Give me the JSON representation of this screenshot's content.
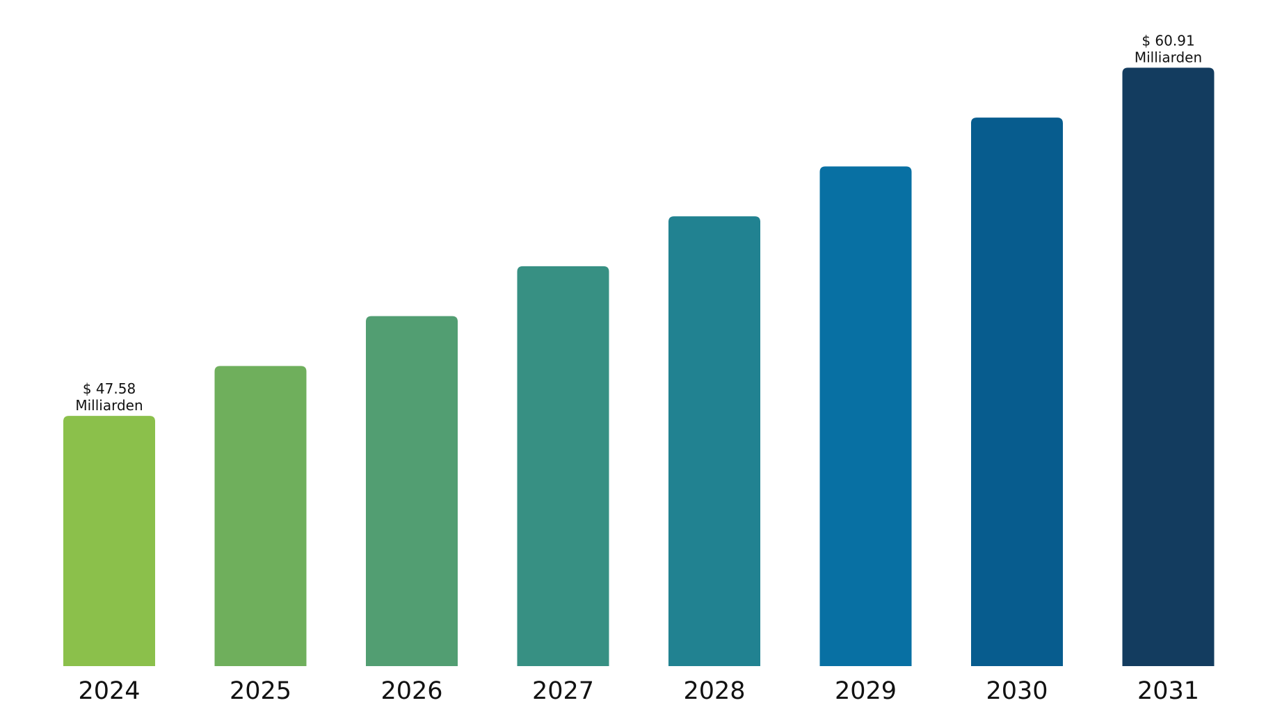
{
  "chart_data": {
    "type": "bar",
    "title": "",
    "xlabel": "",
    "ylabel": "",
    "categories": [
      "2024",
      "2025",
      "2026",
      "2027",
      "2028",
      "2029",
      "2030",
      "2031"
    ],
    "values": [
      47.58,
      49.49,
      51.4,
      53.31,
      55.22,
      57.13,
      59.0,
      60.91
    ],
    "value_unit": "Milliarden",
    "ylim": [
      38.0,
      61.0
    ],
    "grid": false,
    "legend": "none",
    "colors": [
      "#8bc04b",
      "#6faf5c",
      "#529e72",
      "#379083",
      "#218291",
      "#0870a3",
      "#075c8e",
      "#133c5f"
    ],
    "data_labels": [
      {
        "index": 0,
        "line1": "$ 47.58",
        "line2": "Milliarden"
      },
      {
        "index": 7,
        "line1": "$ 60.91",
        "line2": "Milliarden"
      }
    ]
  }
}
